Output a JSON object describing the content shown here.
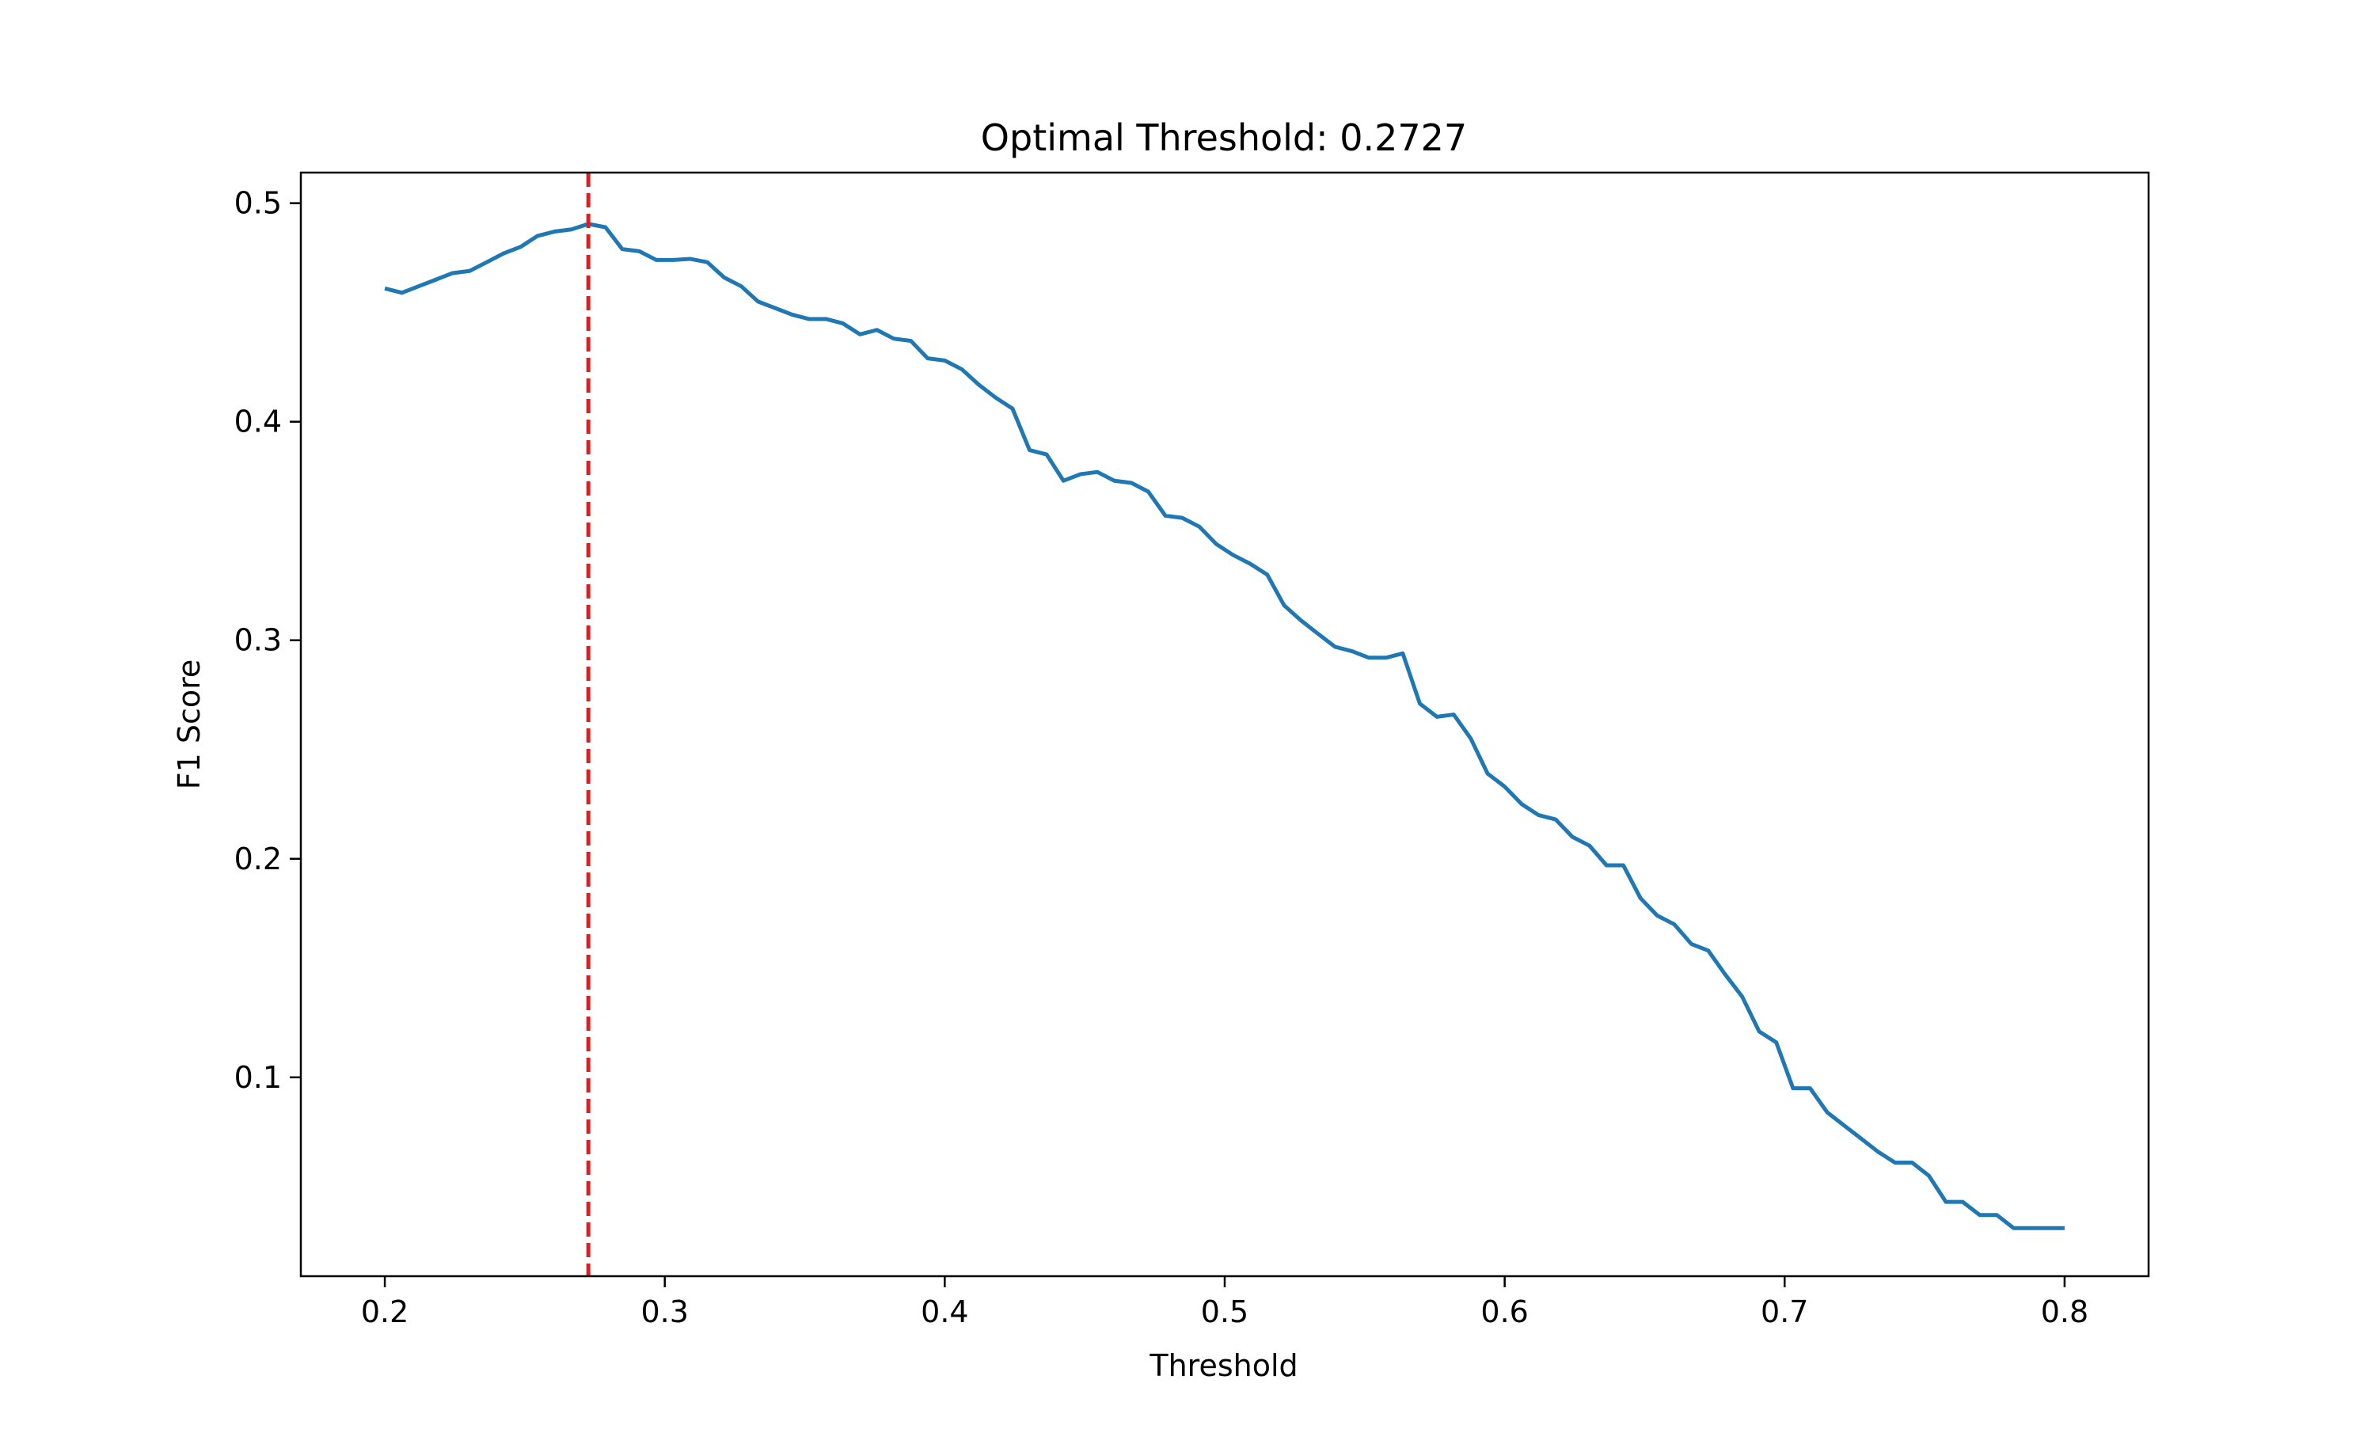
{
  "chart_data": {
    "type": "line",
    "title": "Optimal Threshold: 0.2727",
    "xlabel": "Threshold",
    "ylabel": "F1 Score",
    "xlim": [
      0.17,
      0.83
    ],
    "ylim": [
      0.009,
      0.514
    ],
    "xticks": [
      0.2,
      0.3,
      0.4,
      0.5,
      0.6,
      0.7,
      0.8
    ],
    "yticks": [
      0.1,
      0.2,
      0.3,
      0.4,
      0.5
    ],
    "xtick_labels": [
      "0.2",
      "0.3",
      "0.4",
      "0.5",
      "0.6",
      "0.7",
      "0.8"
    ],
    "ytick_labels": [
      "0.1",
      "0.2",
      "0.3",
      "0.4",
      "0.5"
    ],
    "grid": false,
    "legend": "none",
    "series": [
      {
        "color": "#1f77b4",
        "x": [
          0.2,
          0.2061,
          0.2121,
          0.2182,
          0.2242,
          0.2303,
          0.2364,
          0.2424,
          0.2485,
          0.2545,
          0.2606,
          0.2667,
          0.2727,
          0.2788,
          0.2848,
          0.2909,
          0.297,
          0.303,
          0.3091,
          0.3152,
          0.3212,
          0.3273,
          0.3333,
          0.3394,
          0.3455,
          0.3515,
          0.3576,
          0.3636,
          0.3697,
          0.3758,
          0.3818,
          0.3879,
          0.3939,
          0.4,
          0.4061,
          0.4121,
          0.4182,
          0.4242,
          0.4303,
          0.4364,
          0.4424,
          0.4485,
          0.4545,
          0.4606,
          0.4667,
          0.4727,
          0.4788,
          0.4848,
          0.4909,
          0.497,
          0.503,
          0.5091,
          0.5152,
          0.5212,
          0.5273,
          0.5333,
          0.5394,
          0.5455,
          0.5515,
          0.5576,
          0.5636,
          0.5697,
          0.5758,
          0.5818,
          0.5879,
          0.5939,
          0.6,
          0.6061,
          0.6121,
          0.6182,
          0.6242,
          0.6303,
          0.6364,
          0.6424,
          0.6485,
          0.6545,
          0.6606,
          0.6667,
          0.6727,
          0.6788,
          0.6848,
          0.6909,
          0.697,
          0.703,
          0.7091,
          0.7152,
          0.7212,
          0.7273,
          0.7333,
          0.7394,
          0.7455,
          0.7515,
          0.7576,
          0.7636,
          0.7697,
          0.7758,
          0.7818,
          0.7879,
          0.7939,
          0.8
        ],
        "y": [
          0.461,
          0.459,
          0.462,
          0.465,
          0.468,
          0.469,
          0.473,
          0.477,
          0.48,
          0.485,
          0.487,
          0.488,
          0.4905,
          0.489,
          0.479,
          0.478,
          0.474,
          0.474,
          0.4745,
          0.473,
          0.466,
          0.462,
          0.455,
          0.452,
          0.449,
          0.447,
          0.447,
          0.445,
          0.44,
          0.442,
          0.438,
          0.437,
          0.429,
          0.428,
          0.424,
          0.417,
          0.411,
          0.406,
          0.387,
          0.385,
          0.373,
          0.376,
          0.377,
          0.373,
          0.372,
          0.368,
          0.357,
          0.356,
          0.352,
          0.344,
          0.339,
          0.335,
          0.33,
          0.316,
          0.309,
          0.303,
          0.297,
          0.295,
          0.292,
          0.292,
          0.294,
          0.271,
          0.265,
          0.266,
          0.255,
          0.239,
          0.233,
          0.225,
          0.22,
          0.218,
          0.21,
          0.206,
          0.197,
          0.197,
          0.182,
          0.174,
          0.17,
          0.161,
          0.158,
          0.147,
          0.137,
          0.121,
          0.116,
          0.095,
          0.095,
          0.084,
          0.078,
          0.072,
          0.066,
          0.061,
          0.061,
          0.055,
          0.043,
          0.043,
          0.037,
          0.037,
          0.031,
          0.031,
          0.031,
          0.031
        ]
      }
    ],
    "threshold_line": {
      "x": 0.2727,
      "color": "#e41a1c",
      "style": "dashed"
    }
  }
}
